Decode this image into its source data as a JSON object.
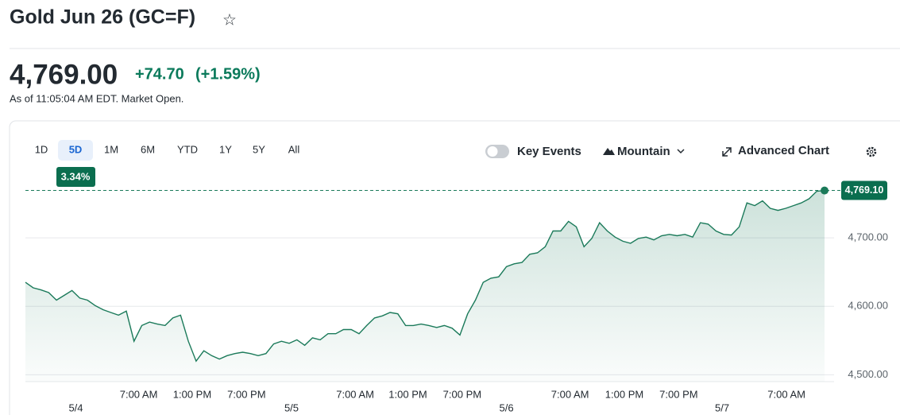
{
  "header": {
    "title": "Gold Jun 26 (GC=F)"
  },
  "quote": {
    "price": "4,769.00",
    "change": "+74.70",
    "change_percent": "(+1.59%)",
    "timestamp": "As of 11:05:04 AM EDT. Market Open."
  },
  "range_tabs": {
    "items": [
      "1D",
      "5D",
      "1M",
      "6M",
      "YTD",
      "1Y",
      "5Y",
      "All"
    ],
    "selected_index": 1,
    "selected_change": "3.34%"
  },
  "toolbar": {
    "key_events": "Key Events",
    "chart_style": "Mountain",
    "advanced": "Advanced Chart"
  },
  "chart_data": {
    "type": "line",
    "color": "#1b7a5a",
    "values": [
      4635,
      4627,
      4624,
      4620,
      4609,
      4616,
      4623,
      4612,
      4609,
      4601,
      4595,
      4591,
      4587,
      4593,
      4549,
      4572,
      4577,
      4574,
      4572,
      4583,
      4587,
      4549,
      4520,
      4535,
      4528,
      4523,
      4528,
      4531,
      4533,
      4531,
      4528,
      4531,
      4545,
      4549,
      4546,
      4551,
      4543,
      4554,
      4551,
      4560,
      4560,
      4566,
      4566,
      4560,
      4572,
      4583,
      4586,
      4591,
      4589,
      4572,
      4572,
      4574,
      4572,
      4569,
      4572,
      4568,
      4558,
      4589,
      4609,
      4635,
      4641,
      4643,
      4658,
      4662,
      4664,
      4676,
      4678,
      4687,
      4710,
      4710,
      4724,
      4716,
      4687,
      4699,
      4722,
      4710,
      4701,
      4695,
      4692,
      4699,
      4701,
      4697,
      4703,
      4705,
      4703,
      4705,
      4701,
      4722,
      4720,
      4710,
      4705,
      4704,
      4716,
      4751,
      4747,
      4754,
      4743,
      4740,
      4743,
      4747,
      4751,
      4757,
      4768,
      4769
    ],
    "xlim": [
      0,
      103
    ],
    "xticks": [
      {
        "value": 14.6,
        "label": "7:00 AM"
      },
      {
        "value": 21.5,
        "label": "1:00 PM"
      },
      {
        "value": 28.5,
        "label": "7:00 PM"
      },
      {
        "value": 42.5,
        "label": "7:00 AM"
      },
      {
        "value": 49.3,
        "label": "1:00 PM"
      },
      {
        "value": 56.3,
        "label": "7:00 PM"
      },
      {
        "value": 70.2,
        "label": "7:00 AM"
      },
      {
        "value": 77.2,
        "label": "1:00 PM"
      },
      {
        "value": 84.2,
        "label": "7:00 PM"
      },
      {
        "value": 98.1,
        "label": "7:00 AM"
      }
    ],
    "x_date_ticks": [
      {
        "value": 6.5,
        "label": "5/4"
      },
      {
        "value": 34.3,
        "label": "5/5"
      },
      {
        "value": 62.0,
        "label": "5/6"
      },
      {
        "value": 89.8,
        "label": "5/7"
      }
    ],
    "ylim": [
      4490,
      4786
    ],
    "yticks": [
      {
        "value": 4500,
        "label": "4,500.00"
      },
      {
        "value": 4600,
        "label": "4,600.00"
      },
      {
        "value": 4700,
        "label": "4,700.00"
      }
    ],
    "last_price": {
      "value": 4769.1,
      "label": "4,769.10"
    },
    "grid": true
  }
}
